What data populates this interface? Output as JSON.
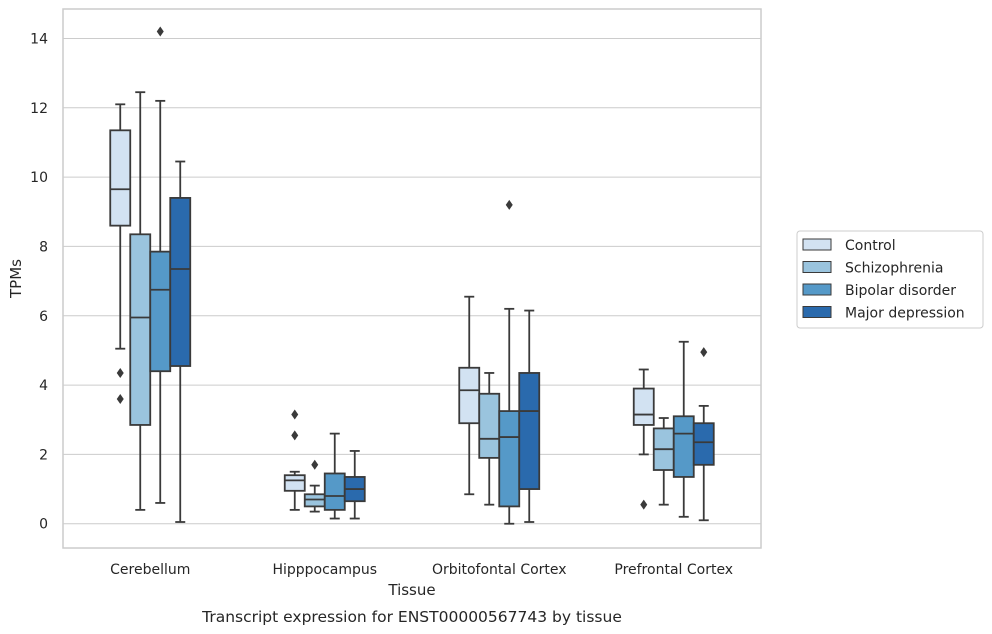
{
  "chart_data": {
    "type": "box",
    "caption": "Transcript expression for ENST00000567743 by tissue",
    "xlabel": "Tissue",
    "ylabel": "TPMs",
    "ylim": [
      -0.7,
      14.85
    ],
    "yticks": [
      0,
      2,
      4,
      6,
      8,
      10,
      12,
      14
    ],
    "categories": [
      "Cerebellum",
      "Hipppocampus",
      "Orbitofontal Cortex",
      "Prefrontal Cortex"
    ],
    "grid": "horizontal",
    "legend_position": "right",
    "series": [
      {
        "name": "Control",
        "color": "#d2e2f2",
        "boxes": [
          {
            "whislo": 5.05,
            "q1": 8.6,
            "med": 9.65,
            "q3": 11.35,
            "whishi": 12.1,
            "fliers": [
              4.35,
              3.6
            ]
          },
          {
            "whislo": 0.4,
            "q1": 0.95,
            "med": 1.25,
            "q3": 1.4,
            "whishi": 1.5,
            "fliers": [
              3.15,
              2.55
            ]
          },
          {
            "whislo": 0.85,
            "q1": 2.9,
            "med": 3.85,
            "q3": 4.5,
            "whishi": 6.55,
            "fliers": []
          },
          {
            "whislo": 2.0,
            "q1": 2.85,
            "med": 3.15,
            "q3": 3.9,
            "whishi": 4.45,
            "fliers": [
              0.55
            ]
          }
        ]
      },
      {
        "name": "Schizophrenia",
        "color": "#9ac4de",
        "boxes": [
          {
            "whislo": 0.4,
            "q1": 2.85,
            "med": 5.95,
            "q3": 8.35,
            "whishi": 12.45,
            "fliers": []
          },
          {
            "whislo": 0.35,
            "q1": 0.5,
            "med": 0.7,
            "q3": 0.85,
            "whishi": 1.1,
            "fliers": [
              1.7
            ]
          },
          {
            "whislo": 0.55,
            "q1": 1.9,
            "med": 2.45,
            "q3": 3.75,
            "whishi": 4.35,
            "fliers": []
          },
          {
            "whislo": 0.55,
            "q1": 1.55,
            "med": 2.15,
            "q3": 2.75,
            "whishi": 3.05,
            "fliers": []
          }
        ]
      },
      {
        "name": "Bipolar disorder",
        "color": "#5599c8",
        "boxes": [
          {
            "whislo": 0.6,
            "q1": 4.4,
            "med": 6.75,
            "q3": 7.85,
            "whishi": 12.2,
            "fliers": [
              14.2
            ]
          },
          {
            "whislo": 0.15,
            "q1": 0.4,
            "med": 0.8,
            "q3": 1.45,
            "whishi": 2.6,
            "fliers": []
          },
          {
            "whislo": 0.0,
            "q1": 0.5,
            "med": 2.5,
            "q3": 3.25,
            "whishi": 6.2,
            "fliers": [
              9.2
            ]
          },
          {
            "whislo": 0.2,
            "q1": 1.35,
            "med": 2.6,
            "q3": 3.1,
            "whishi": 5.25,
            "fliers": []
          }
        ]
      },
      {
        "name": "Major depression",
        "color": "#2a6aad",
        "boxes": [
          {
            "whislo": 0.05,
            "q1": 4.55,
            "med": 7.35,
            "q3": 9.4,
            "whishi": 10.45,
            "fliers": []
          },
          {
            "whislo": 0.15,
            "q1": 0.65,
            "med": 1.0,
            "q3": 1.35,
            "whishi": 2.1,
            "fliers": []
          },
          {
            "whislo": 0.05,
            "q1": 1.0,
            "med": 3.25,
            "q3": 4.35,
            "whishi": 6.15,
            "fliers": []
          },
          {
            "whislo": 0.1,
            "q1": 1.7,
            "med": 2.35,
            "q3": 2.9,
            "whishi": 3.4,
            "fliers": [
              4.95
            ]
          }
        ]
      }
    ]
  }
}
